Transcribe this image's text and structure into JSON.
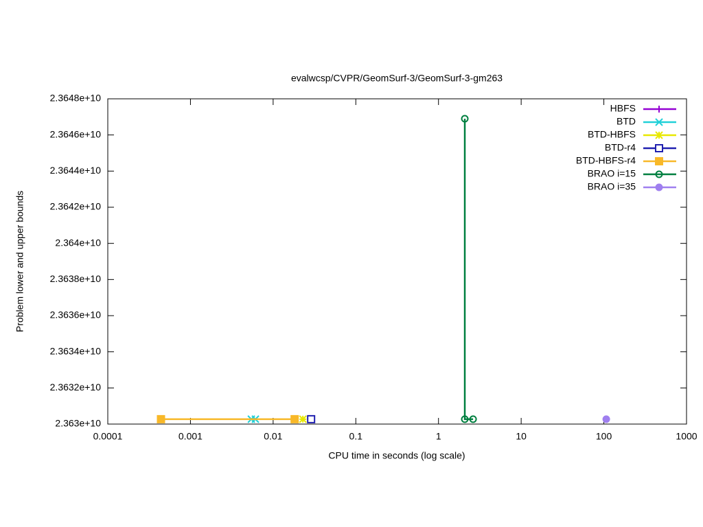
{
  "chart_data": {
    "type": "line",
    "title": "evalwcsp/CVPR/GeomSurf-3/GeomSurf-3-gm263",
    "xlabel": "CPU time in seconds (log scale)",
    "ylabel": "Problem lower and upper bounds",
    "xscale": "log",
    "xlim": [
      0.0001,
      1000
    ],
    "xticks": [
      0.0001,
      0.001,
      0.01,
      0.1,
      1,
      10,
      100,
      1000
    ],
    "ylim": [
      23630000000,
      23648000000
    ],
    "yticks": [
      {
        "value": 23630000000,
        "label": "2.363e+10"
      },
      {
        "value": 23632000000,
        "label": "2.3632e+10"
      },
      {
        "value": 23634000000,
        "label": "2.3634e+10"
      },
      {
        "value": 23636000000,
        "label": "2.3636e+10"
      },
      {
        "value": 23638000000,
        "label": "2.3638e+10"
      },
      {
        "value": 23640000000,
        "label": "2.364e+10"
      },
      {
        "value": 23642000000,
        "label": "2.3642e+10"
      },
      {
        "value": 23644000000,
        "label": "2.3644e+10"
      },
      {
        "value": 23646000000,
        "label": "2.3646e+10"
      },
      {
        "value": 23648000000,
        "label": "2.3648e+10"
      }
    ],
    "legend": "top-right",
    "series": [
      {
        "name": "HBFS",
        "color": "#9400d3",
        "marker": "plus",
        "x": [
          0.00044
        ],
        "values": [
          23630270000
        ]
      },
      {
        "name": "BTD",
        "color": "#20d0d8",
        "marker": "cross",
        "x": [
          0.00545,
          0.0061
        ],
        "values": [
          23630270000,
          23630270000
        ]
      },
      {
        "name": "BTD-HBFS",
        "color": "#e8e800",
        "marker": "star",
        "x": [
          0.0229
        ],
        "values": [
          23630270000
        ]
      },
      {
        "name": "BTD-r4",
        "color": "#1f1faf",
        "marker": "square",
        "x": [
          0.0288
        ],
        "values": [
          23630270000
        ]
      },
      {
        "name": "BTD-HBFS-r4",
        "color": "#f8b828",
        "marker": "squarefill",
        "x": [
          0.00044,
          0.0182
        ],
        "values": [
          23630270000,
          23630270000
        ]
      },
      {
        "name": "BRAO i=15",
        "color": "#007f3f",
        "marker": "circle",
        "x": [
          2.08,
          2.08,
          2.62
        ],
        "values": [
          23646900000,
          23630270000,
          23630270000
        ]
      },
      {
        "name": "BRAO i=35",
        "color": "#9f7fef",
        "marker": "circlefill",
        "x": [
          107
        ],
        "values": [
          23630270000
        ]
      }
    ]
  }
}
